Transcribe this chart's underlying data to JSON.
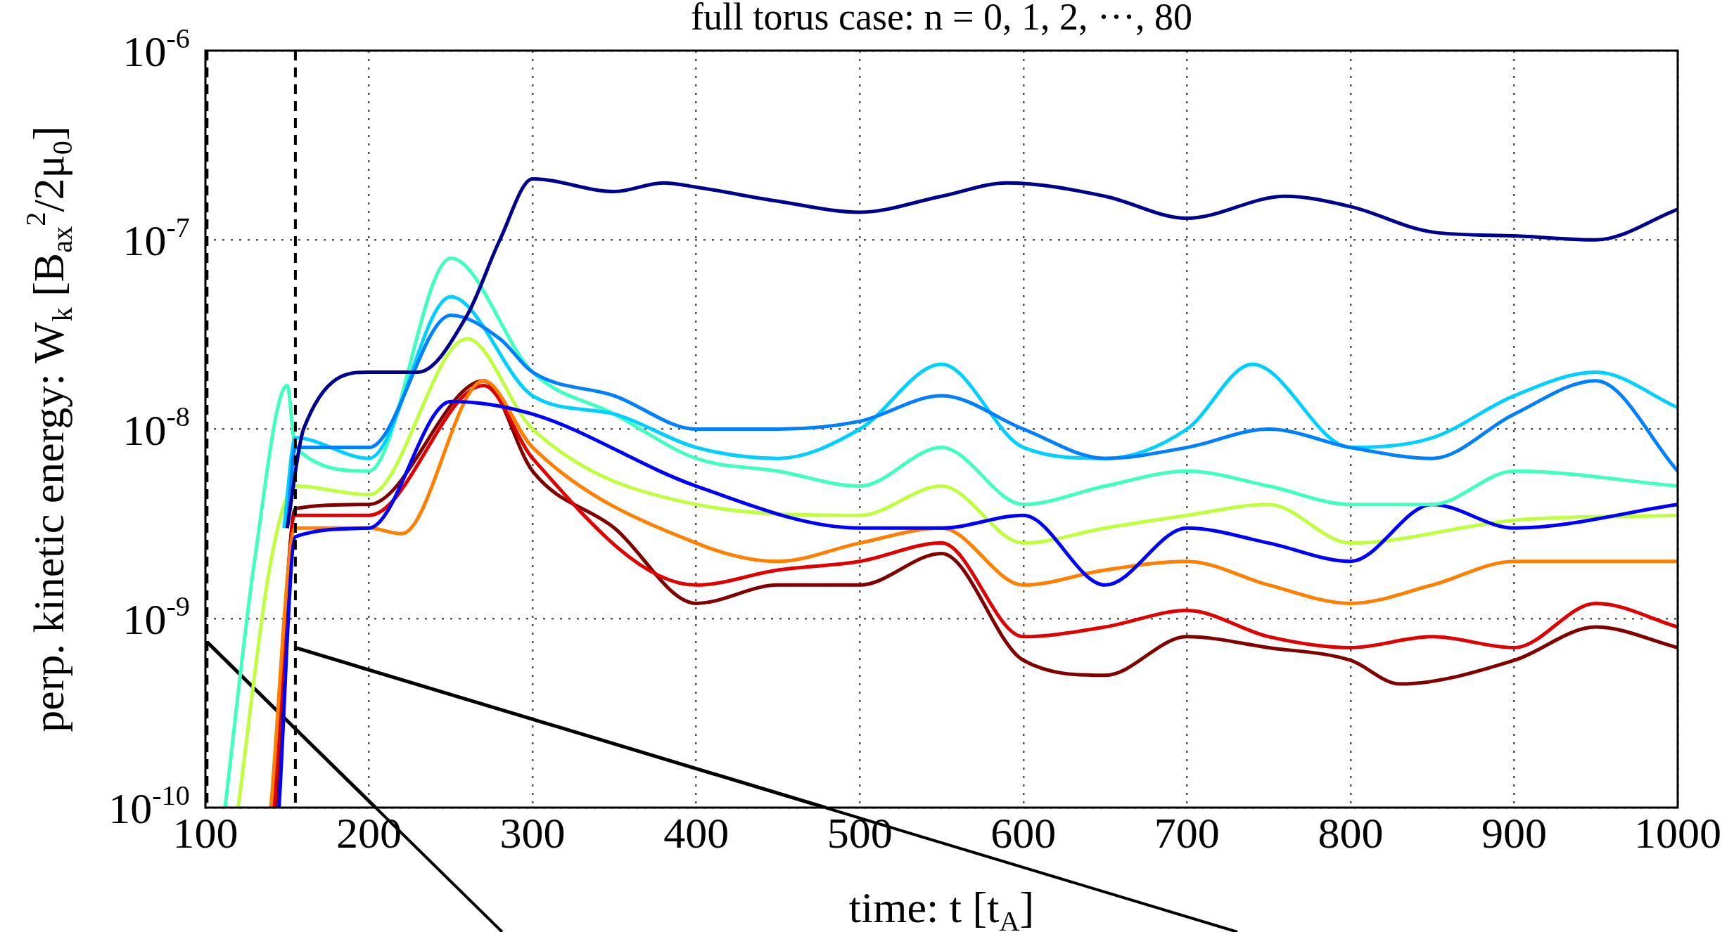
{
  "chart_data": {
    "type": "line",
    "title": "full torus case: n = 0, 1, 2, ···, 80",
    "xlabel": "time: t [t$_{A}$]",
    "ylabel": "perp. kinetic energy: W$_{k}$ [B$_{ax}$$^{2}$/2μ$_{0}$]",
    "log": "y",
    "grid": true,
    "legend": false,
    "marker": "none",
    "line_style": "solid",
    "xlim": [
      100,
      1000
    ],
    "xticks": [
      100,
      200,
      300,
      400,
      500,
      600,
      700,
      800,
      900,
      1000
    ],
    "ylim": [
      1e-10,
      1e-06
    ],
    "yticks": [
      {
        "value": 1e-10,
        "label": "10$^{-10}$"
      },
      {
        "value": 1e-09,
        "label": "10$^{-9}$"
      },
      {
        "value": 1e-08,
        "label": "10$^{-8}$"
      },
      {
        "value": 1e-07,
        "label": "10$^{-7}$"
      },
      {
        "value": 1e-06,
        "label": "10$^{-6}$"
      }
    ],
    "ref_lines": [
      {
        "axis": "x",
        "value": 101,
        "color": "#000000",
        "line_style": "dashed"
      },
      {
        "axis": "x",
        "value": 155,
        "color": "#000000",
        "line_style": "dashed"
      }
    ],
    "series": [
      {
        "color": "#00008f",
        "x": [
          150,
          160,
          200,
          230,
          260,
          280,
          300,
          350,
          380,
          400,
          450,
          500,
          550,
          590,
          650,
          700,
          760,
          800,
          850,
          900,
          950,
          1000
        ],
        "values": [
          3e-09,
          1e-08,
          2e-08,
          2e-08,
          4e-08,
          1e-07,
          2.1e-07,
          1.8e-07,
          2e-07,
          1.9e-07,
          1.6e-07,
          1.4e-07,
          1.7e-07,
          2e-07,
          1.7e-07,
          1.3e-07,
          1.7e-07,
          1.5e-07,
          1.1e-07,
          1.05e-07,
          1e-07,
          1.45e-07
        ]
      },
      {
        "color": "#0080ff",
        "x": [
          150,
          155,
          200,
          250,
          280,
          300,
          350,
          400,
          450,
          500,
          550,
          600,
          650,
          700,
          750,
          800,
          850,
          900,
          950,
          1000
        ],
        "values": [
          3e-09,
          8e-09,
          8e-09,
          4e-08,
          3e-08,
          2e-08,
          1.5e-08,
          1e-08,
          1e-08,
          1.1e-08,
          1.5e-08,
          1e-08,
          7e-09,
          8e-09,
          1e-08,
          8e-09,
          7e-09,
          1.2e-08,
          1.8e-08,
          6e-09
        ]
      },
      {
        "color": "#00d0ff",
        "x": [
          148,
          155,
          200,
          250,
          300,
          350,
          400,
          450,
          500,
          550,
          600,
          650,
          700,
          740,
          800,
          850,
          900,
          950,
          1000
        ],
        "values": [
          3e-09,
          9e-09,
          7e-09,
          5e-08,
          1.5e-08,
          1.2e-08,
          8e-09,
          7e-09,
          1e-08,
          2.2e-08,
          8e-09,
          7e-09,
          1e-08,
          2.2e-08,
          8e-09,
          9e-09,
          1.5e-08,
          2e-08,
          1.3e-08
        ]
      },
      {
        "color": "#40ffc0",
        "x": [
          112,
          130,
          150,
          155,
          200,
          250,
          300,
          350,
          400,
          450,
          500,
          550,
          600,
          650,
          700,
          750,
          800,
          850,
          900,
          1000
        ],
        "values": [
          1e-10,
          2e-09,
          1.7e-08,
          8e-09,
          6e-09,
          8e-08,
          2e-08,
          1.2e-08,
          7e-09,
          6e-09,
          5e-09,
          8e-09,
          4e-09,
          5e-09,
          6e-09,
          5e-09,
          4e-09,
          4e-09,
          6e-09,
          5e-09
        ]
      },
      {
        "color": "#0000ff",
        "x": [
          145,
          155,
          200,
          250,
          300,
          400,
          500,
          550,
          600,
          650,
          700,
          750,
          800,
          850,
          900,
          1000
        ],
        "values": [
          1e-10,
          2.7e-09,
          3e-09,
          1.4e-08,
          1.2e-08,
          5e-09,
          3e-09,
          3e-09,
          3.5e-09,
          1.5e-09,
          3e-09,
          2.5e-09,
          2e-09,
          4e-09,
          3e-09,
          4e-09
        ]
      },
      {
        "color": "#c0ff40",
        "x": [
          120,
          140,
          155,
          200,
          260,
          300,
          400,
          500,
          550,
          600,
          650,
          700,
          750,
          800,
          900,
          1000
        ],
        "values": [
          1e-10,
          2e-09,
          5e-09,
          4.5e-09,
          3e-08,
          1e-08,
          4e-09,
          3.5e-09,
          5e-09,
          2.5e-09,
          3e-09,
          3.5e-09,
          4e-09,
          2.5e-09,
          3.3e-09,
          3.5e-09
        ]
      },
      {
        "color": "#ff8000",
        "x": [
          140,
          155,
          200,
          220,
          270,
          300,
          400,
          450,
          500,
          550,
          600,
          650,
          700,
          750,
          800,
          850,
          900,
          1000
        ],
        "values": [
          1e-10,
          3e-09,
          3e-09,
          2.8e-09,
          1.8e-08,
          8e-09,
          2.5e-09,
          2e-09,
          2.5e-09,
          3e-09,
          1.5e-09,
          1.8e-09,
          2e-09,
          1.5e-09,
          1.2e-09,
          1.5e-09,
          2e-09,
          2e-09
        ]
      },
      {
        "color": "#e00000",
        "x": [
          142,
          155,
          200,
          270,
          300,
          400,
          450,
          500,
          550,
          600,
          650,
          700,
          750,
          800,
          850,
          900,
          950,
          1000
        ],
        "values": [
          1e-10,
          3.5e-09,
          3.5e-09,
          1.7e-08,
          7e-09,
          1.5e-09,
          1.8e-09,
          2e-09,
          2.5e-09,
          8e-10,
          9e-10,
          1.1e-09,
          8e-10,
          7e-10,
          8e-10,
          7e-10,
          1.2e-09,
          9e-10
        ]
      },
      {
        "color": "#000000",
        "x": [
          101,
          204
        ],
        "values": [
          7.5e-10,
          1e-10
        ]
      },
      {
        "color": "#000000",
        "x": [
          155,
          479
        ],
        "values": [
          7e-10,
          1e-10
        ]
      },
      {
        "color": "#800000",
        "x": [
          143,
          155,
          200,
          270,
          300,
          350,
          400,
          450,
          500,
          550,
          600,
          650,
          700,
          750,
          800,
          830,
          900,
          950,
          1000
        ],
        "values": [
          1e-10,
          3.8e-09,
          4e-09,
          1.8e-08,
          6e-09,
          3e-09,
          1.2e-09,
          1.5e-09,
          1.5e-09,
          2.2e-09,
          6e-10,
          5e-10,
          8e-10,
          7e-10,
          6e-10,
          4.5e-10,
          6e-10,
          9e-10,
          7e-10
        ]
      }
    ]
  }
}
